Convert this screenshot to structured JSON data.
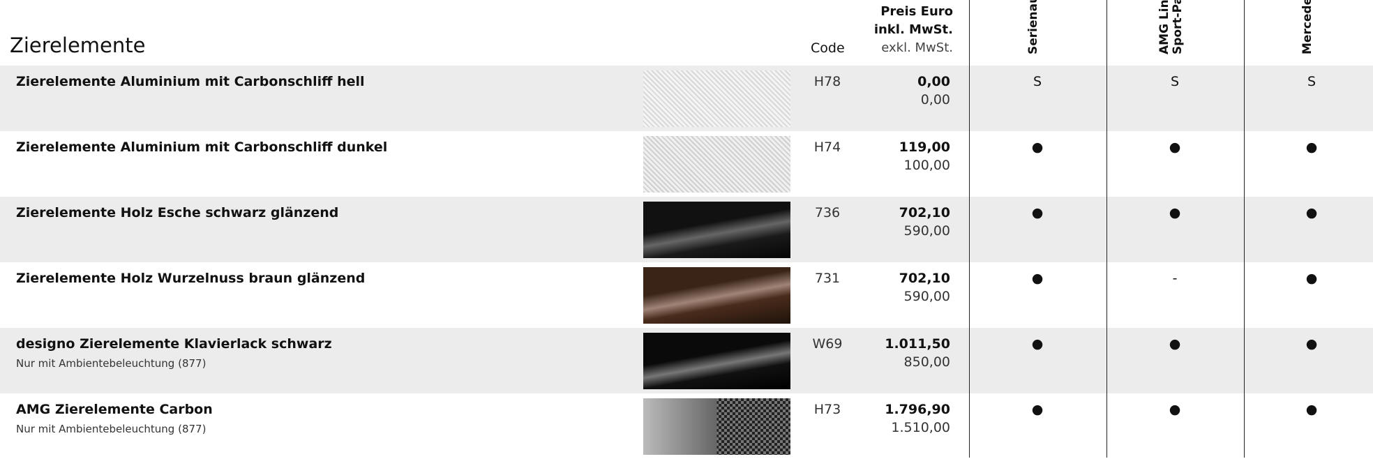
{
  "header": {
    "title": "Zierelemente",
    "code": "Code",
    "price": [
      "Preis Euro",
      "inkl. MwSt.",
      "exkl. MwSt."
    ],
    "columns": [
      [
        "Serienau"
      ],
      [
        "AMG Lin",
        "Sport-Pal"
      ],
      [
        "Mercede"
      ]
    ]
  },
  "rows": [
    {
      "name": "Zierelemente Aluminium mit Carbonschliff hell",
      "code": "H78",
      "price_incl": "0,00",
      "price_excl": "0,00",
      "marks": [
        "S",
        "S",
        "S"
      ]
    },
    {
      "name": "Zierelemente Aluminium mit Carbonschliff dunkel",
      "code": "H74",
      "price_incl": "119,00",
      "price_excl": "100,00",
      "marks": [
        "●",
        "●",
        "●"
      ]
    },
    {
      "name": "Zierelemente Holz Esche schwarz glänzend",
      "code": "736",
      "price_incl": "702,10",
      "price_excl": "590,00",
      "marks": [
        "●",
        "●",
        "●"
      ]
    },
    {
      "name": "Zierelemente Holz Wurzelnuss braun glänzend",
      "code": "731",
      "price_incl": "702,10",
      "price_excl": "590,00",
      "marks": [
        "●",
        "-",
        "●"
      ]
    },
    {
      "name": "designo Zierelemente Klavierlack schwarz",
      "note": "Nur mit Ambientebeleuchtung (877)",
      "code": "W69",
      "price_incl": "1.011,50",
      "price_excl": "850,00",
      "marks": [
        "●",
        "●",
        "●"
      ]
    },
    {
      "name": "AMG Zierelemente Carbon",
      "note": "Nur mit Ambientebeleuchtung (877)",
      "code": "H73",
      "price_incl": "1.796,90",
      "price_excl": "1.510,00",
      "marks": [
        "●",
        "●",
        "●"
      ]
    }
  ]
}
